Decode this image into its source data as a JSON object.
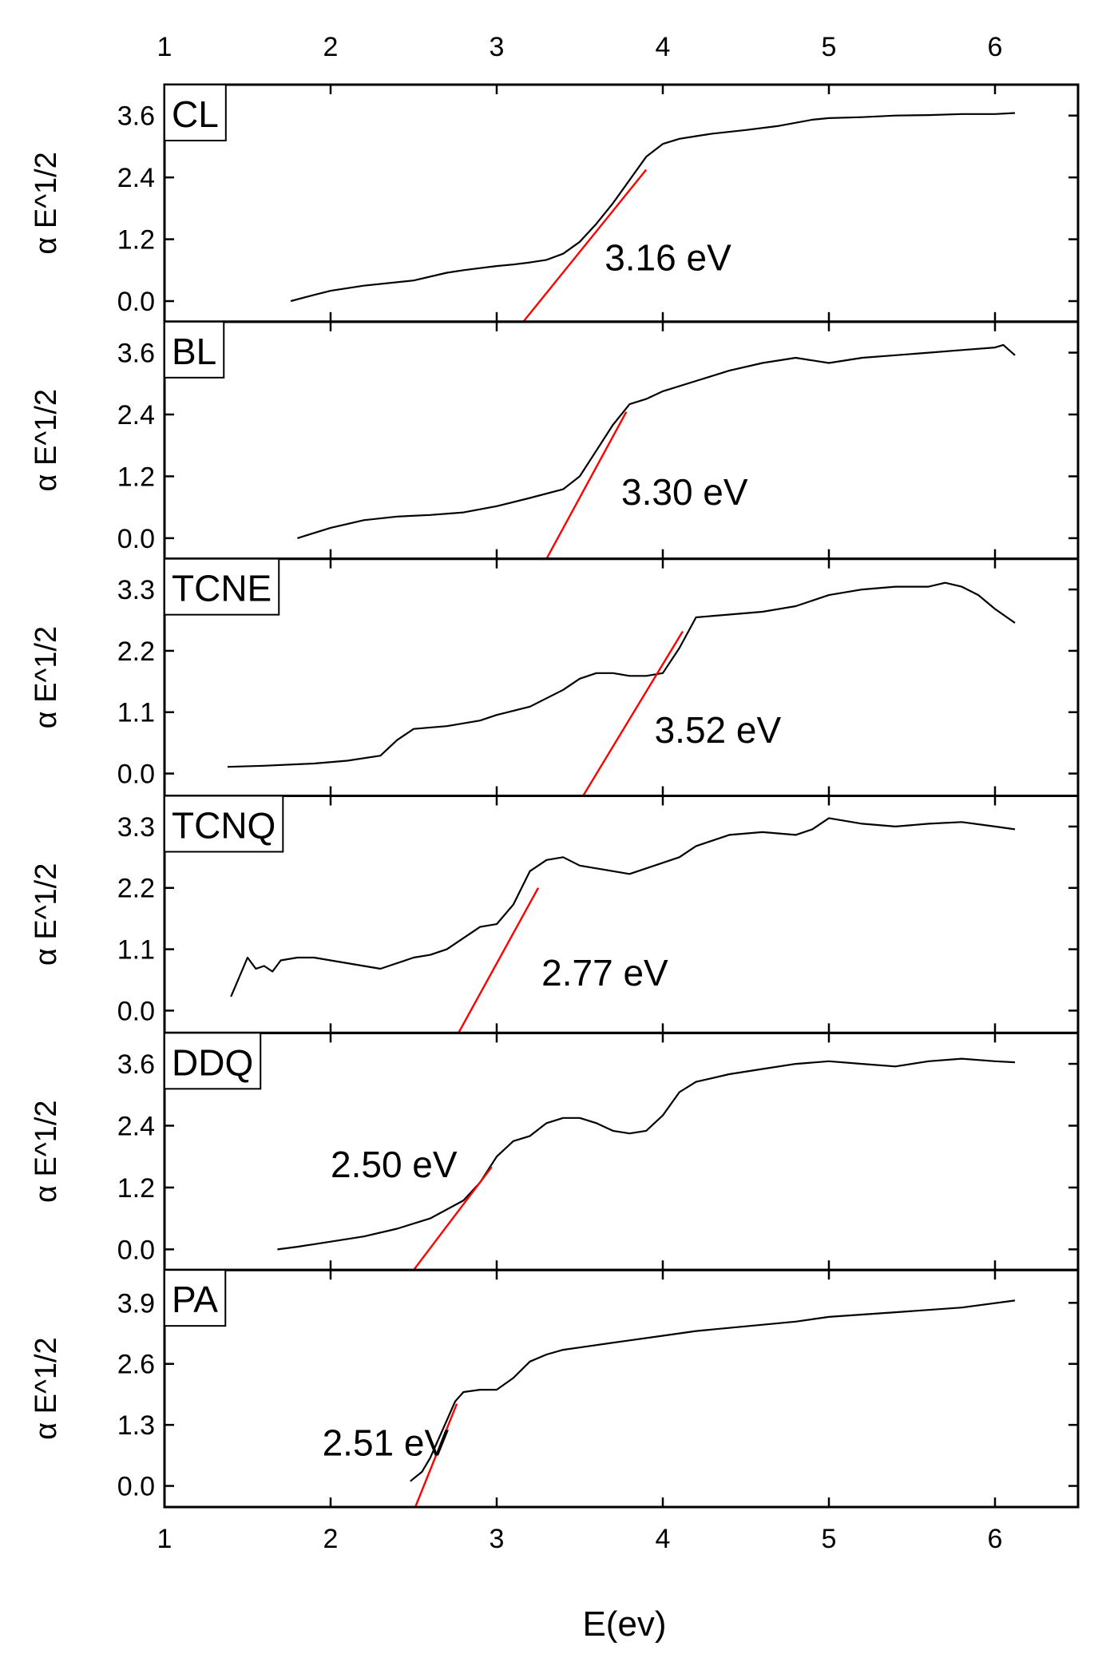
{
  "chart_data": {
    "type": "line",
    "xlabel": "E(ev)",
    "xlim": [
      1,
      6.5
    ],
    "xticks": [
      1,
      2,
      3,
      4,
      5,
      6
    ],
    "grid": false,
    "colors": {
      "curve": "#000000",
      "fit": "#ff0000",
      "frame": "#000000",
      "background": "#ffffff"
    },
    "panels": [
      {
        "label": "CL",
        "ylabel": "α E^1/2",
        "ylim": [
          -0.4,
          4.2
        ],
        "yticks": [
          0.0,
          1.2,
          2.4,
          3.6
        ],
        "ytick_labels": [
          "0.0",
          "1.2",
          "2.4",
          "3.6"
        ],
        "annotation": "3.16 eV",
        "annotation_pos": [
          3.65,
          0.6
        ],
        "fit_line": {
          "x": [
            3.16,
            3.9
          ],
          "y": [
            -0.4,
            2.55
          ]
        },
        "series": [
          {
            "name": "CL",
            "x": [
              1.76,
              1.9,
              2.0,
              2.2,
              2.5,
              2.7,
              2.8,
              2.9,
              3.0,
              3.1,
              3.2,
              3.3,
              3.4,
              3.5,
              3.6,
              3.7,
              3.8,
              3.9,
              4.0,
              4.1,
              4.2,
              4.3,
              4.5,
              4.7,
              4.9,
              5.0,
              5.2,
              5.4,
              5.6,
              5.8,
              6.0,
              6.12
            ],
            "y": [
              0.0,
              0.12,
              0.2,
              0.3,
              0.4,
              0.55,
              0.6,
              0.64,
              0.68,
              0.71,
              0.75,
              0.8,
              0.92,
              1.15,
              1.5,
              1.9,
              2.35,
              2.8,
              3.05,
              3.15,
              3.2,
              3.25,
              3.32,
              3.4,
              3.52,
              3.55,
              3.57,
              3.6,
              3.61,
              3.63,
              3.63,
              3.65
            ]
          }
        ]
      },
      {
        "label": "BL",
        "ylabel": "α E^1/2",
        "ylim": [
          -0.4,
          4.2
        ],
        "yticks": [
          0.0,
          1.2,
          2.4,
          3.6
        ],
        "ytick_labels": [
          "0.0",
          "1.2",
          "2.4",
          "3.6"
        ],
        "annotation": "3.30 eV",
        "annotation_pos": [
          3.75,
          0.65
        ],
        "fit_line": {
          "x": [
            3.3,
            3.78
          ],
          "y": [
            -0.4,
            2.45
          ]
        },
        "series": [
          {
            "name": "BL",
            "x": [
              1.8,
              2.0,
              2.2,
              2.4,
              2.6,
              2.8,
              3.0,
              3.2,
              3.4,
              3.5,
              3.6,
              3.7,
              3.8,
              3.9,
              4.0,
              4.2,
              4.4,
              4.6,
              4.8,
              5.0,
              5.2,
              5.4,
              5.6,
              5.8,
              6.0,
              6.05,
              6.12
            ],
            "y": [
              0.0,
              0.2,
              0.35,
              0.42,
              0.45,
              0.5,
              0.62,
              0.78,
              0.95,
              1.2,
              1.7,
              2.2,
              2.6,
              2.7,
              2.85,
              3.05,
              3.25,
              3.4,
              3.5,
              3.4,
              3.5,
              3.55,
              3.6,
              3.65,
              3.7,
              3.75,
              3.55
            ]
          }
        ]
      },
      {
        "label": "TCNE",
        "ylabel": "α E^1/2",
        "ylim": [
          -0.4,
          3.85
        ],
        "yticks": [
          0.0,
          1.1,
          2.2,
          3.3
        ],
        "ytick_labels": [
          "0.0",
          "1.1",
          "2.2",
          "3.3"
        ],
        "annotation": "3.52 eV",
        "annotation_pos": [
          3.95,
          0.55
        ],
        "fit_line": {
          "x": [
            3.52,
            4.12
          ],
          "y": [
            -0.4,
            2.55
          ]
        },
        "series": [
          {
            "name": "TCNE",
            "x": [
              1.38,
              1.6,
              1.9,
              2.1,
              2.3,
              2.4,
              2.5,
              2.7,
              2.9,
              3.0,
              3.2,
              3.4,
              3.5,
              3.6,
              3.7,
              3.8,
              3.9,
              4.0,
              4.1,
              4.2,
              4.4,
              4.6,
              4.8,
              5.0,
              5.2,
              5.4,
              5.6,
              5.7,
              5.8,
              5.9,
              6.0,
              6.12
            ],
            "y": [
              0.12,
              0.14,
              0.18,
              0.23,
              0.32,
              0.6,
              0.8,
              0.85,
              0.95,
              1.05,
              1.2,
              1.5,
              1.7,
              1.8,
              1.8,
              1.75,
              1.75,
              1.8,
              2.25,
              2.8,
              2.85,
              2.9,
              3.0,
              3.2,
              3.3,
              3.35,
              3.35,
              3.42,
              3.35,
              3.2,
              2.95,
              2.7
            ]
          }
        ]
      },
      {
        "label": "TCNQ",
        "ylabel": "α E^1/2",
        "ylim": [
          -0.4,
          3.85
        ],
        "yticks": [
          0.0,
          1.1,
          2.2,
          3.3
        ],
        "ytick_labels": [
          "0.0",
          "1.1",
          "2.2",
          "3.3"
        ],
        "annotation": "2.77 eV",
        "annotation_pos": [
          3.27,
          0.45
        ],
        "fit_line": {
          "x": [
            2.77,
            3.25
          ],
          "y": [
            -0.4,
            2.2
          ]
        },
        "series": [
          {
            "name": "TCNQ",
            "x": [
              1.4,
              1.45,
              1.5,
              1.55,
              1.6,
              1.65,
              1.7,
              1.8,
              1.9,
              2.0,
              2.1,
              2.2,
              2.3,
              2.4,
              2.5,
              2.6,
              2.7,
              2.8,
              2.9,
              3.0,
              3.1,
              3.2,
              3.3,
              3.4,
              3.5,
              3.6,
              3.7,
              3.8,
              3.9,
              4.0,
              4.1,
              4.2,
              4.4,
              4.6,
              4.8,
              4.9,
              5.0,
              5.2,
              5.4,
              5.6,
              5.8,
              6.0,
              6.12
            ],
            "y": [
              0.25,
              0.6,
              0.95,
              0.75,
              0.8,
              0.7,
              0.9,
              0.95,
              0.95,
              0.9,
              0.85,
              0.8,
              0.75,
              0.85,
              0.95,
              1.0,
              1.1,
              1.3,
              1.5,
              1.55,
              1.9,
              2.5,
              2.7,
              2.75,
              2.6,
              2.55,
              2.5,
              2.45,
              2.55,
              2.65,
              2.75,
              2.95,
              3.15,
              3.2,
              3.15,
              3.25,
              3.45,
              3.35,
              3.3,
              3.35,
              3.38,
              3.3,
              3.25
            ]
          }
        ]
      },
      {
        "label": "DDQ",
        "ylabel": "α E^1/2",
        "ylim": [
          -0.4,
          4.2
        ],
        "yticks": [
          0.0,
          1.2,
          2.4,
          3.6
        ],
        "ytick_labels": [
          "0.0",
          "1.2",
          "2.4",
          "3.6"
        ],
        "annotation": "2.50 eV",
        "annotation_pos": [
          2.0,
          1.4
        ],
        "fit_line": {
          "x": [
            2.5,
            2.97
          ],
          "y": [
            -0.4,
            1.6
          ]
        },
        "series": [
          {
            "name": "DDQ",
            "x": [
              1.68,
              1.8,
              1.9,
              2.0,
              2.2,
              2.4,
              2.6,
              2.8,
              2.9,
              3.0,
              3.1,
              3.2,
              3.3,
              3.4,
              3.5,
              3.6,
              3.7,
              3.8,
              3.9,
              4.0,
              4.1,
              4.2,
              4.4,
              4.6,
              4.8,
              5.0,
              5.2,
              5.4,
              5.6,
              5.8,
              6.0,
              6.12
            ],
            "y": [
              0.0,
              0.05,
              0.1,
              0.15,
              0.25,
              0.4,
              0.6,
              0.95,
              1.3,
              1.8,
              2.1,
              2.2,
              2.45,
              2.55,
              2.55,
              2.45,
              2.3,
              2.25,
              2.3,
              2.6,
              3.05,
              3.25,
              3.4,
              3.5,
              3.6,
              3.65,
              3.6,
              3.55,
              3.65,
              3.7,
              3.65,
              3.63
            ]
          }
        ]
      },
      {
        "label": "PA",
        "ylabel": "α E^1/2",
        "ylim": [
          -0.45,
          4.6
        ],
        "yticks": [
          0.0,
          1.3,
          2.6,
          3.9
        ],
        "ytick_labels": [
          "0.0",
          "1.3",
          "2.6",
          "3.9"
        ],
        "annotation": "2.51 eV",
        "annotation_pos": [
          1.95,
          0.65
        ],
        "fit_line": {
          "x": [
            2.51,
            2.76
          ],
          "y": [
            -0.45,
            1.75
          ]
        },
        "series": [
          {
            "name": "PA",
            "x": [
              2.48,
              2.55,
              2.6,
              2.7,
              2.75,
              2.8,
              2.9,
              3.0,
              3.1,
              3.2,
              3.3,
              3.4,
              3.5,
              3.6,
              3.8,
              4.0,
              4.2,
              4.5,
              4.8,
              5.0,
              5.4,
              5.8,
              6.12
            ],
            "y": [
              0.1,
              0.3,
              0.6,
              1.4,
              1.8,
              2.0,
              2.05,
              2.05,
              2.3,
              2.65,
              2.8,
              2.9,
              2.95,
              3.0,
              3.1,
              3.2,
              3.3,
              3.4,
              3.5,
              3.6,
              3.7,
              3.8,
              3.95
            ]
          }
        ]
      }
    ]
  }
}
